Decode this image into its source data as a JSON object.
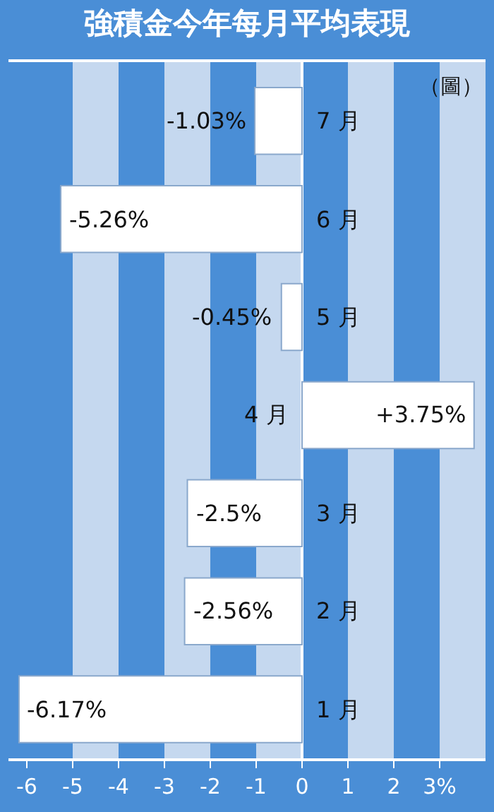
{
  "chart_data": {
    "type": "bar",
    "orientation": "horizontal",
    "title": "強積金今年每月平均表現",
    "annotations": [
      "（圖）"
    ],
    "categories": [
      "7 月",
      "6 月",
      "5 月",
      "4 月",
      "3 月",
      "2 月",
      "1 月"
    ],
    "values": [
      -1.03,
      -5.26,
      -0.45,
      3.75,
      -2.5,
      -2.56,
      -6.17
    ],
    "value_labels": [
      "-1.03%",
      "-5.26%",
      "-0.45%",
      "+3.75%",
      "-2.5%",
      "-2.56%",
      "-6.17%"
    ],
    "color": "#ffffff",
    "xlim": [
      -6.4,
      4.0
    ],
    "xticks": [
      -6,
      -5,
      -4,
      -3,
      -2,
      -1,
      0,
      1,
      2,
      {
        "value": 3,
        "label": "3%"
      }
    ],
    "bands": [
      {
        "axis": "x",
        "from": -5,
        "to": -4,
        "color": "#c5d8ef"
      },
      {
        "axis": "x",
        "from": -3,
        "to": -2,
        "color": "#c5d8ef"
      },
      {
        "axis": "x",
        "from": -1,
        "to": 0,
        "color": "#c5d8ef"
      },
      {
        "axis": "x",
        "from": 1,
        "to": 2,
        "color": "#c5d8ef"
      },
      {
        "axis": "x",
        "from": 3,
        "to": 4.0,
        "color": "#c5d8ef"
      }
    ],
    "grid": false,
    "legend": false
  }
}
